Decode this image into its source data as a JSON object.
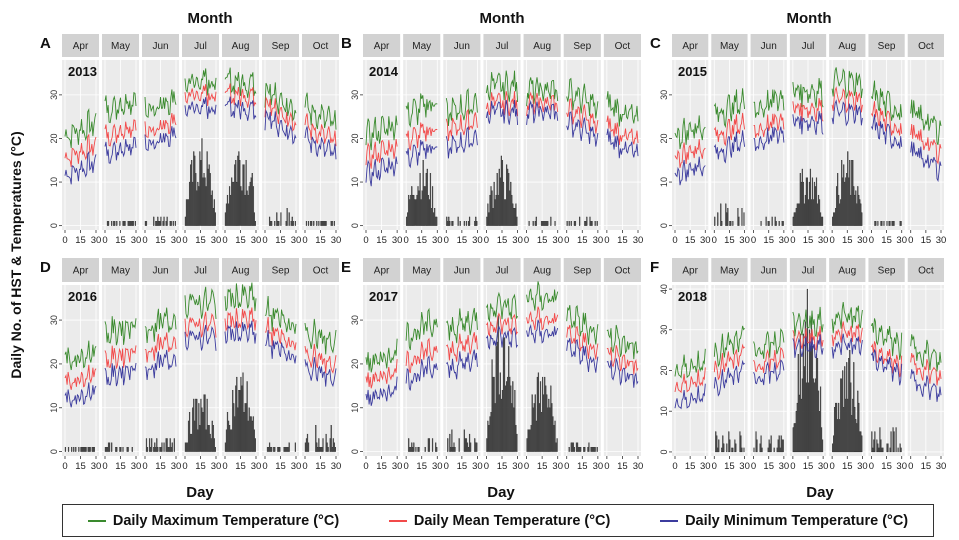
{
  "title_month": "Month",
  "ylabel": "Daily No. of HST & Temperatures (°C)",
  "xlabel": "Day",
  "months": [
    "Apr",
    "May",
    "Jun",
    "Jul",
    "Aug",
    "Sep",
    "Oct"
  ],
  "day_ticks": [
    "0",
    "15",
    "30"
  ],
  "colors": {
    "max": "#3a8a2e",
    "mean": "#f24a4a",
    "min": "#3c3c9e",
    "bar": "#555555",
    "strip": "#d2d2d2",
    "panel": "#ebebeb"
  },
  "legend": {
    "max_label": "Daily Maximum Temperature (°C)",
    "mean_label": "Daily Mean Temperature (°C)",
    "min_label": "Daily Minimum Temperature (°C)"
  },
  "chart_data": [
    {
      "type": "line+bar",
      "panel": "A",
      "year": "2013",
      "ylim": [
        -1,
        38
      ],
      "yticks": [
        0,
        10,
        20,
        30
      ],
      "monthly": {
        "max": [
          22,
          28,
          28,
          33,
          33,
          29,
          25
        ],
        "mean": [
          17,
          22,
          23,
          30,
          30,
          26,
          21
        ],
        "min": [
          13,
          18,
          20,
          27,
          27,
          23,
          18
        ],
        "hst_peak": [
          0,
          1,
          2,
          21,
          22,
          4,
          1
        ]
      }
    },
    {
      "type": "line+bar",
      "panel": "B",
      "year": "2014",
      "ylim": [
        -1,
        38
      ],
      "yticks": [
        0,
        10,
        20,
        30
      ],
      "monthly": {
        "max": [
          22,
          27,
          27,
          32,
          31,
          29,
          26
        ],
        "mean": [
          17,
          21,
          23,
          28,
          28,
          25,
          21
        ],
        "min": [
          13,
          17,
          19,
          26,
          26,
          22,
          18
        ],
        "hst_peak": [
          0,
          16,
          3,
          16,
          2,
          2,
          0
        ]
      }
    },
    {
      "type": "line+bar",
      "panel": "C",
      "year": "2015",
      "ylim": [
        -1,
        38
      ],
      "yticks": [
        0,
        10,
        20,
        30
      ],
      "monthly": {
        "max": [
          22,
          27,
          28,
          31,
          33,
          28,
          24
        ],
        "mean": [
          17,
          22,
          23,
          27,
          29,
          24,
          19
        ],
        "min": [
          13,
          18,
          20,
          24,
          26,
          21,
          15
        ],
        "hst_peak": [
          0,
          5,
          2,
          15,
          17,
          1,
          0
        ]
      }
    },
    {
      "type": "line+bar",
      "panel": "D",
      "year": "2016",
      "ylim": [
        -1,
        38
      ],
      "yticks": [
        0,
        10,
        20,
        30
      ],
      "monthly": {
        "max": [
          22,
          28,
          29,
          34,
          35,
          30,
          26
        ],
        "mean": [
          17,
          22,
          24,
          29,
          30,
          26,
          21
        ],
        "min": [
          13,
          18,
          20,
          26,
          27,
          23,
          18
        ],
        "hst_peak": [
          1,
          2,
          4,
          14,
          20,
          2,
          6
        ]
      }
    },
    {
      "type": "line+bar",
      "panel": "E",
      "year": "2017",
      "ylim": [
        -1,
        38
      ],
      "yticks": [
        0,
        10,
        20,
        30
      ],
      "monthly": {
        "max": [
          21,
          28,
          29,
          33,
          35,
          29,
          25
        ],
        "mean": [
          17,
          22,
          24,
          29,
          30,
          25,
          21
        ],
        "min": [
          13,
          18,
          20,
          26,
          27,
          22,
          18
        ],
        "hst_peak": [
          0,
          3,
          5,
          33,
          20,
          2,
          0
        ]
      }
    },
    {
      "type": "line+bar",
      "panel": "F",
      "year": "2018",
      "ylim": [
        -1,
        41
      ],
      "yticks": [
        0,
        10,
        20,
        30,
        40
      ],
      "monthly": {
        "max": [
          21,
          26,
          26,
          32,
          33,
          28,
          24
        ],
        "mean": [
          17,
          22,
          22,
          28,
          29,
          23,
          20
        ],
        "min": [
          13,
          18,
          19,
          26,
          26,
          21,
          16
        ],
        "hst_peak": [
          0,
          6,
          5,
          40,
          26,
          6,
          0
        ]
      }
    }
  ]
}
